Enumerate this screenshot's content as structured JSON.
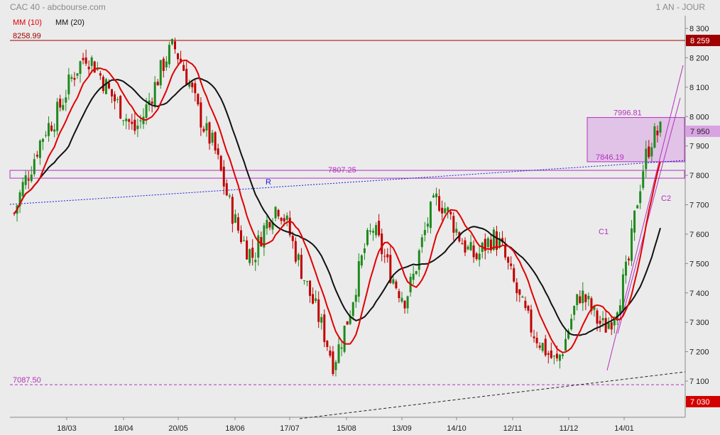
{
  "header": {
    "title": "CAC 40 - abcbourse.com",
    "period": "1 AN - JOUR",
    "legend": [
      {
        "name": "MM (10)",
        "color": "#e00000"
      },
      {
        "name": "MM (20)",
        "color": "#111111"
      }
    ]
  },
  "chart_data": {
    "type": "candlestick",
    "instrument": "CAC 40",
    "y_ticks": [
      "8 300",
      "8 200",
      "8 100",
      "8 000",
      "7 900",
      "7 800",
      "7 700",
      "7 600",
      "7 500",
      "7 400",
      "7 300",
      "7 200",
      "7 100"
    ],
    "ylim": [
      7030,
      8330
    ],
    "x_ticks": [
      "18/03",
      "18/04",
      "20/05",
      "18/06",
      "17/07",
      "15/08",
      "13/09",
      "14/10",
      "12/11",
      "11/12",
      "14/01"
    ],
    "colors": {
      "up": "#1e8a1e",
      "down": "#c00000",
      "mm10": "#e00000",
      "mm20": "#111111",
      "hline_top": "#a00000",
      "zone": "#b52fbf",
      "resistance": "#1a1ae0",
      "support": "#222222"
    },
    "price_labels": {
      "last": "7 950",
      "top": "8 259",
      "bottom": "7 030"
    },
    "levels": [
      {
        "label": "8258.99",
        "value": 8258.99
      },
      {
        "label": "7087.50",
        "value": 7087.5
      },
      {
        "label": "7807.25",
        "value": 7807.25
      }
    ],
    "zone": {
      "upper_label": "7996.81",
      "upper": 7996.81,
      "lower_label": "7846.19",
      "lower": 7846.19
    },
    "annotations": [
      {
        "text": "R",
        "color": "#1a1ae0"
      },
      {
        "text": "C1",
        "color": "#b52fbf"
      },
      {
        "text": "C2",
        "color": "#b52fbf"
      }
    ],
    "series_close_approx": [
      7670,
      7760,
      7820,
      7900,
      7960,
      7990,
      8050,
      8120,
      8170,
      8210,
      8180,
      8130,
      8080,
      8040,
      8000,
      7950,
      7990,
      8060,
      8130,
      8200,
      8240,
      8180,
      8110,
      8020,
      7950,
      7900,
      7800,
      7700,
      7620,
      7560,
      7520,
      7600,
      7660,
      7700,
      7650,
      7560,
      7480,
      7400,
      7330,
      7250,
      7160,
      7240,
      7330,
      7450,
      7560,
      7620,
      7550,
      7480,
      7420,
      7380,
      7450,
      7560,
      7660,
      7720,
      7690,
      7640,
      7580,
      7540,
      7520,
      7560,
      7590,
      7560,
      7480,
      7400,
      7330,
      7270,
      7230,
      7190,
      7160,
      7230,
      7330,
      7400,
      7360,
      7310,
      7280,
      7320,
      7400,
      7500,
      7700,
      7850,
      7930,
      7950
    ]
  }
}
